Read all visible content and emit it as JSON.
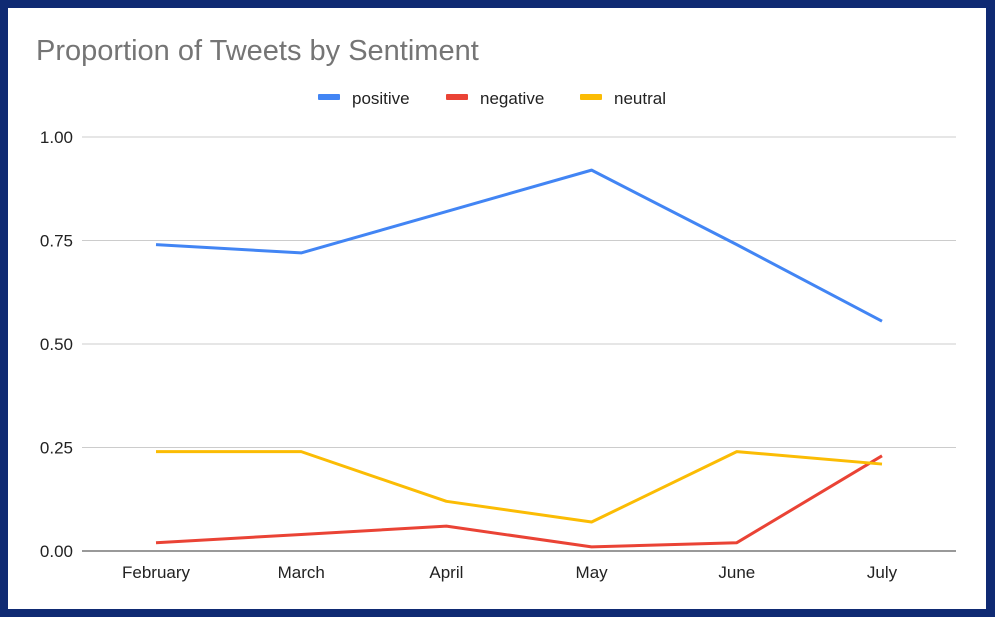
{
  "chart_data": {
    "type": "line",
    "title": "Proportion of Tweets by Sentiment",
    "xlabel": "",
    "ylabel": "",
    "categories": [
      "February",
      "March",
      "April",
      "May",
      "June",
      "July"
    ],
    "ylim": [
      0,
      1
    ],
    "yticks": [
      "0.00",
      "0.25",
      "0.50",
      "0.75",
      "1.00"
    ],
    "legend_position": "top",
    "series": [
      {
        "name": "positive",
        "color": "#4285f4",
        "values": [
          0.74,
          0.72,
          0.82,
          0.92,
          0.74,
          0.555
        ]
      },
      {
        "name": "negative",
        "color": "#ea4335",
        "values": [
          0.02,
          0.04,
          0.06,
          0.01,
          0.02,
          0.23
        ]
      },
      {
        "name": "neutral",
        "color": "#fbbc04",
        "values": [
          0.24,
          0.24,
          0.12,
          0.07,
          0.24,
          0.21
        ]
      }
    ]
  }
}
